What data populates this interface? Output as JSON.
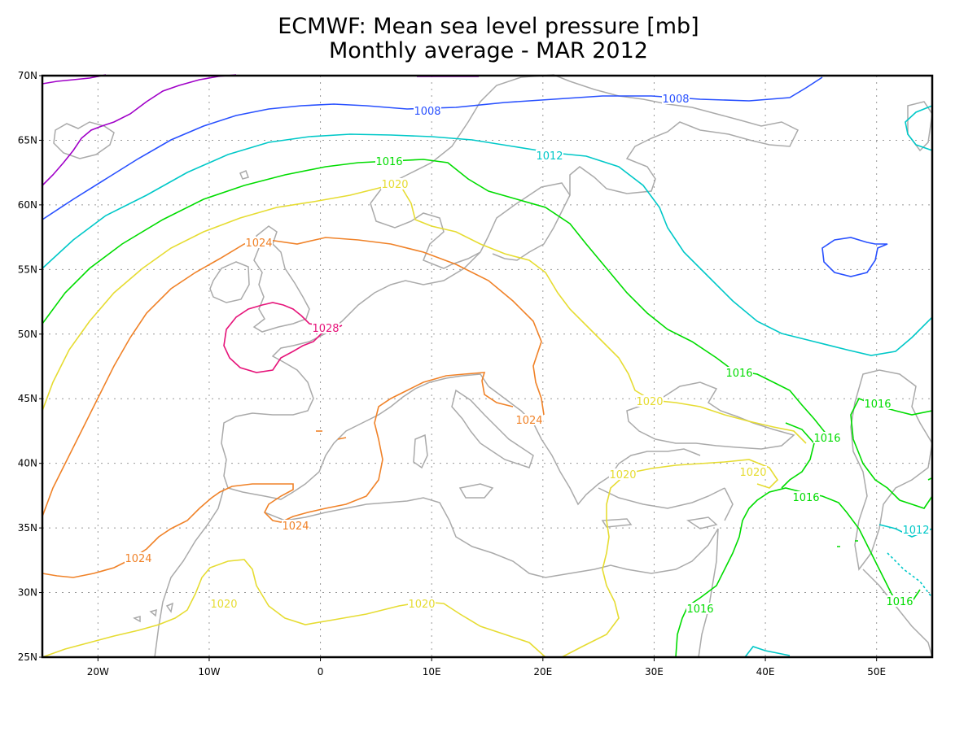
{
  "title": {
    "line1": "ECMWF: Mean sea level pressure [mb]",
    "line2": "Monthly average - MAR 2012"
  },
  "map": {
    "lon_range": [
      -25,
      55
    ],
    "lat_range": [
      25,
      70
    ],
    "lon_ticks": [
      "20W",
      "10W",
      "0",
      "10E",
      "20E",
      "30E",
      "40E",
      "50E"
    ],
    "lat_ticks": [
      "70N",
      "65N",
      "60N",
      "55N",
      "50N",
      "45N",
      "40N",
      "35N",
      "30N",
      "25N"
    ],
    "grid": "dotted",
    "coastline_color": "#aaaaaa"
  },
  "contour_colors": {
    "1000": "#a000c8",
    "1008": "#2850ff",
    "1012": "#00c8c8",
    "1016": "#00dc00",
    "1020": "#e6dc32",
    "1024": "#f08228",
    "1028": "#e6147a"
  },
  "contour_labels": [
    {
      "text": "1008",
      "value": 1008
    },
    {
      "text": "1008",
      "value": 1008
    },
    {
      "text": "1012",
      "value": 1012
    },
    {
      "text": "1016",
      "value": 1016
    },
    {
      "text": "1020",
      "value": 1020
    },
    {
      "text": "1024",
      "value": 1024
    },
    {
      "text": "1028",
      "value": 1028
    },
    {
      "text": "1024",
      "value": 1024
    },
    {
      "text": "1016",
      "value": 1016
    },
    {
      "text": "1016",
      "value": 1016
    },
    {
      "text": "1020",
      "value": 1020
    },
    {
      "text": "1016",
      "value": 1016
    },
    {
      "text": "1020",
      "value": 1020
    },
    {
      "text": "1020",
      "value": 1020
    },
    {
      "text": "1016",
      "value": 1016
    },
    {
      "text": "1012",
      "value": 1012
    },
    {
      "text": "1024",
      "value": 1024
    },
    {
      "text": "1024",
      "value": 1024
    },
    {
      "text": "1020",
      "value": 1020
    },
    {
      "text": "1020",
      "value": 1020
    },
    {
      "text": "1016",
      "value": 1016
    },
    {
      "text": "1016",
      "value": 1016
    }
  ]
}
